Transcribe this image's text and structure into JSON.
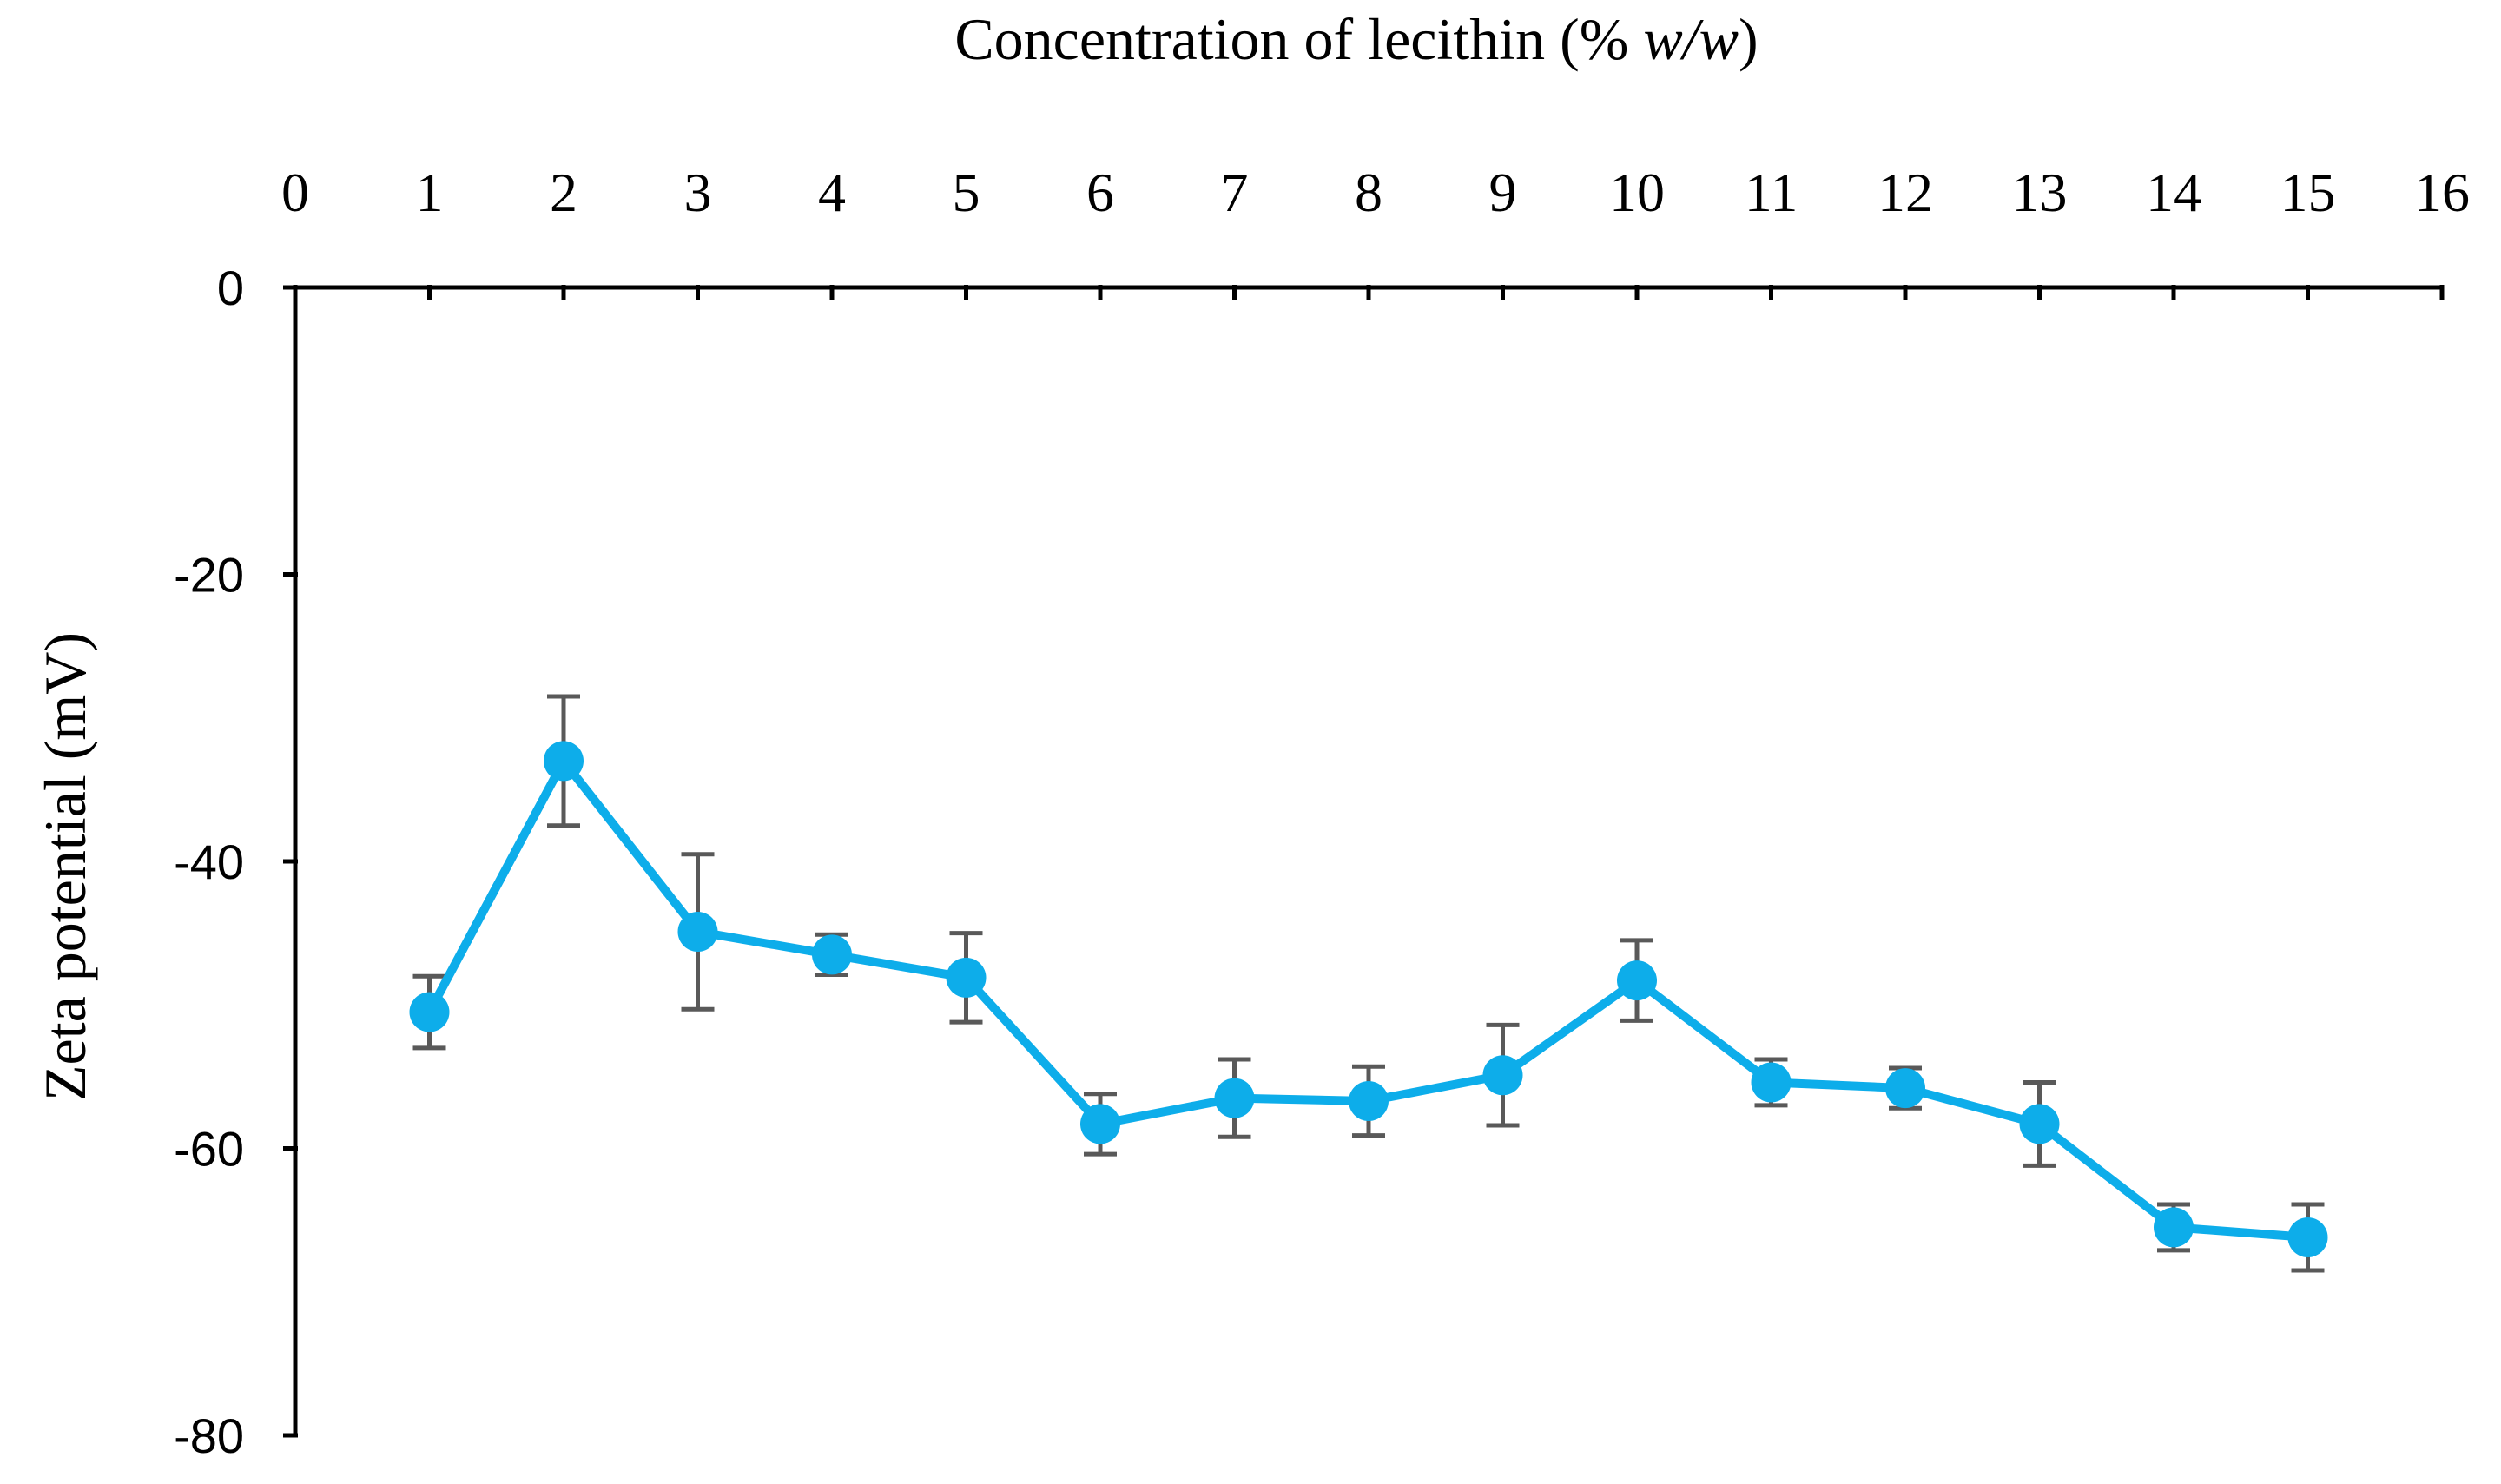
{
  "chart_data": {
    "type": "line",
    "xlabel": "Concentration of lecithin (% ",
    "xlabel_italic": "w/w",
    "xlabel_suffix": ")",
    "ylabel": "Zeta potential (mV)",
    "xlim": [
      0,
      16
    ],
    "ylim": [
      -80,
      0
    ],
    "x_ticks": [
      "0",
      "1",
      "2",
      "3",
      "4",
      "5",
      "6",
      "7",
      "8",
      "9",
      "10",
      "11",
      "12",
      "13",
      "14",
      "15",
      "16"
    ],
    "y_ticks": [
      "0",
      "-20",
      "-40",
      "-60",
      "-80"
    ],
    "x_axis_position": "top",
    "grid": false,
    "legend": "none",
    "series": [
      {
        "color": "#0DADEA",
        "error_bar_color": "#595959",
        "x": [
          1,
          2,
          3,
          4,
          5,
          6,
          7,
          8,
          9,
          10,
          11,
          12,
          13,
          14,
          15
        ],
        "y": [
          -50.5,
          -33.0,
          -44.9,
          -46.5,
          -48.1,
          -58.3,
          -56.5,
          -56.7,
          -54.9,
          -48.3,
          -55.4,
          -55.8,
          -58.3,
          -65.5,
          -66.2
        ],
        "error": [
          2.5,
          4.5,
          5.4,
          1.4,
          3.1,
          2.1,
          2.7,
          2.4,
          3.5,
          2.8,
          1.6,
          1.4,
          2.9,
          1.6,
          2.3
        ]
      }
    ]
  }
}
